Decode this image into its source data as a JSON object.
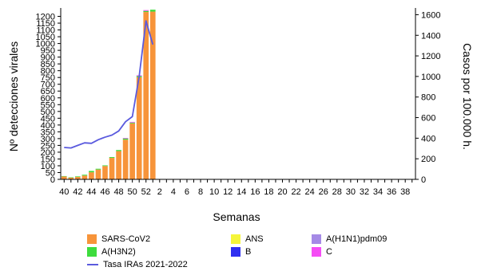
{
  "chart_data": {
    "type": "bar",
    "xlabel": "Semanas",
    "ylabel_left": "Nº detecciones virales",
    "ylabel_right": "Casos por 100.000 h.",
    "ylim_left": [
      0,
      1250
    ],
    "ylim_right": [
      0,
      1650
    ],
    "yticks_left": [
      0,
      50,
      100,
      150,
      200,
      250,
      300,
      350,
      400,
      450,
      500,
      550,
      600,
      650,
      700,
      750,
      800,
      850,
      900,
      950,
      1000,
      1050,
      1100,
      1150,
      1200
    ],
    "yticks_right": [
      0,
      200,
      400,
      600,
      800,
      1000,
      1200,
      1400,
      1600
    ],
    "weeks": [
      40,
      41,
      42,
      43,
      44,
      45,
      46,
      47,
      48,
      49,
      50,
      51,
      52,
      1,
      2,
      3,
      4,
      5,
      6,
      7,
      8,
      9,
      10,
      11,
      12,
      13,
      14,
      15,
      16,
      17,
      18,
      19,
      20,
      21,
      22,
      23,
      24,
      25,
      26,
      27,
      28,
      29,
      30,
      31,
      32,
      33,
      34,
      35,
      36,
      37,
      38,
      39
    ],
    "week_labels": [
      "40",
      "42",
      "44",
      "46",
      "48",
      "50",
      "52",
      "2",
      "4",
      "6",
      "8",
      "10",
      "12",
      "14",
      "16",
      "18",
      "20",
      "22",
      "24",
      "26",
      "28",
      "30",
      "32",
      "34",
      "36",
      "38"
    ],
    "series": [
      {
        "name": "SARS-CoV2",
        "color": "#f7943a",
        "values": [
          22,
          12,
          18,
          28,
          52,
          72,
          98,
          158,
          208,
          292,
          412,
          752,
          1232,
          1235
        ]
      },
      {
        "name": "A(H3N2)",
        "color": "#3ddc3d",
        "values": [
          2,
          3,
          4,
          6,
          10,
          6,
          5,
          6,
          8,
          9,
          6,
          8,
          8,
          14
        ]
      },
      {
        "name": "ANS",
        "color": "#f5f53a",
        "values": [
          0,
          0,
          0,
          0,
          0,
          0,
          0,
          0,
          0,
          0,
          0,
          0,
          0,
          0
        ]
      },
      {
        "name": "B",
        "color": "#2f2ff0",
        "values": [
          0,
          0,
          0,
          0,
          0,
          0,
          0,
          0,
          0,
          0,
          0,
          0,
          0,
          0
        ]
      },
      {
        "name": "A(H1N1)pdm09",
        "color": "#a58ae6",
        "values": [
          0,
          0,
          0,
          0,
          0,
          0,
          0,
          0,
          0,
          0,
          0,
          0,
          0,
          0
        ]
      },
      {
        "name": "C",
        "color": "#f54cf5",
        "values": [
          0,
          0,
          0,
          0,
          0,
          0,
          0,
          0,
          0,
          4,
          5,
          6,
          6,
          0
        ]
      }
    ],
    "line_series": {
      "name": "Tasa IRAs 2021-2022",
      "color": "#5a5ade",
      "axis": "right",
      "values": [
        310,
        305,
        330,
        355,
        350,
        385,
        410,
        430,
        470,
        560,
        610,
        1000,
        1540,
        1310
      ]
    },
    "legend_position": "bottom"
  }
}
